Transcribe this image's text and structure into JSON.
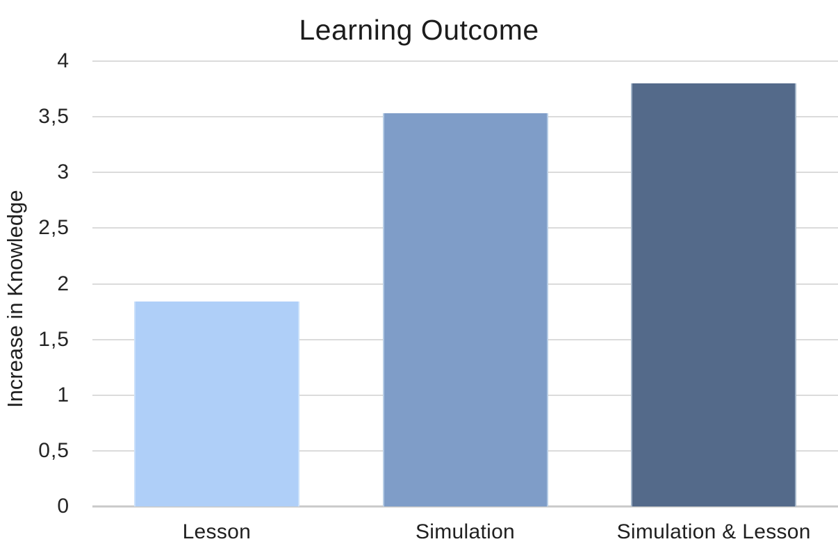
{
  "chart_data": {
    "type": "bar",
    "title": "Learning Outcome",
    "ylabel": "Increase in Knowledge",
    "xlabel": "",
    "categories": [
      "Lesson",
      "Simulation",
      "Simulation & Lesson"
    ],
    "values": [
      1.84,
      3.53,
      3.8
    ],
    "bar_colors": [
      "#afcff8",
      "#7f9dc8",
      "#546a8a"
    ],
    "ylim": [
      0,
      4
    ],
    "ytick_step": 0.5,
    "ytick_labels": [
      "0",
      "0,5",
      "1",
      "1,5",
      "2",
      "2,5",
      "3",
      "3,5",
      "4"
    ],
    "decimal_separator": ",",
    "grid": true,
    "gridline_color": "#dbdbdb",
    "baseline_color": "#c9c9c9",
    "legend_position": "none",
    "text_color": "#1f1f1f",
    "background_color": "#ffffff"
  }
}
